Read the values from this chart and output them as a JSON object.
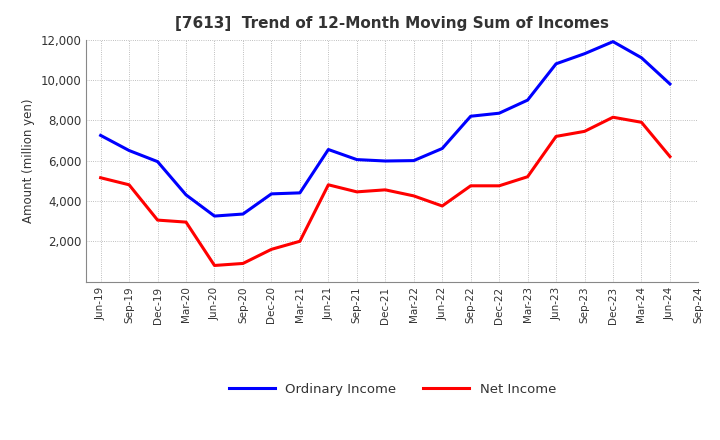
{
  "title": "[7613]  Trend of 12-Month Moving Sum of Incomes",
  "ylabel": "Amount (million yen)",
  "x_labels": [
    "Jun-19",
    "Sep-19",
    "Dec-19",
    "Mar-20",
    "Jun-20",
    "Sep-20",
    "Dec-20",
    "Mar-21",
    "Jun-21",
    "Sep-21",
    "Dec-21",
    "Mar-22",
    "Jun-22",
    "Sep-22",
    "Dec-22",
    "Mar-23",
    "Jun-23",
    "Sep-23",
    "Dec-23",
    "Mar-24",
    "Jun-24",
    "Sep-24"
  ],
  "ordinary_income": [
    7250,
    6500,
    5950,
    4300,
    3250,
    3350,
    4350,
    4400,
    6550,
    6050,
    5980,
    6000,
    6600,
    8200,
    8350,
    9000,
    10800,
    11300,
    11900,
    11100,
    9800,
    null
  ],
  "net_income": [
    5150,
    4800,
    3050,
    2950,
    800,
    900,
    1600,
    2000,
    4800,
    4450,
    4550,
    4250,
    3750,
    4750,
    4750,
    5200,
    7200,
    7450,
    8150,
    7900,
    6200,
    null
  ],
  "ordinary_color": "#0000ff",
  "net_color": "#ff0000",
  "background_color": "#ffffff",
  "grid_color": "#aaaaaa",
  "title_color": "#333333",
  "ylim": [
    0,
    12000
  ],
  "yticks": [
    2000,
    4000,
    6000,
    8000,
    10000,
    12000
  ],
  "line_width": 2.2
}
